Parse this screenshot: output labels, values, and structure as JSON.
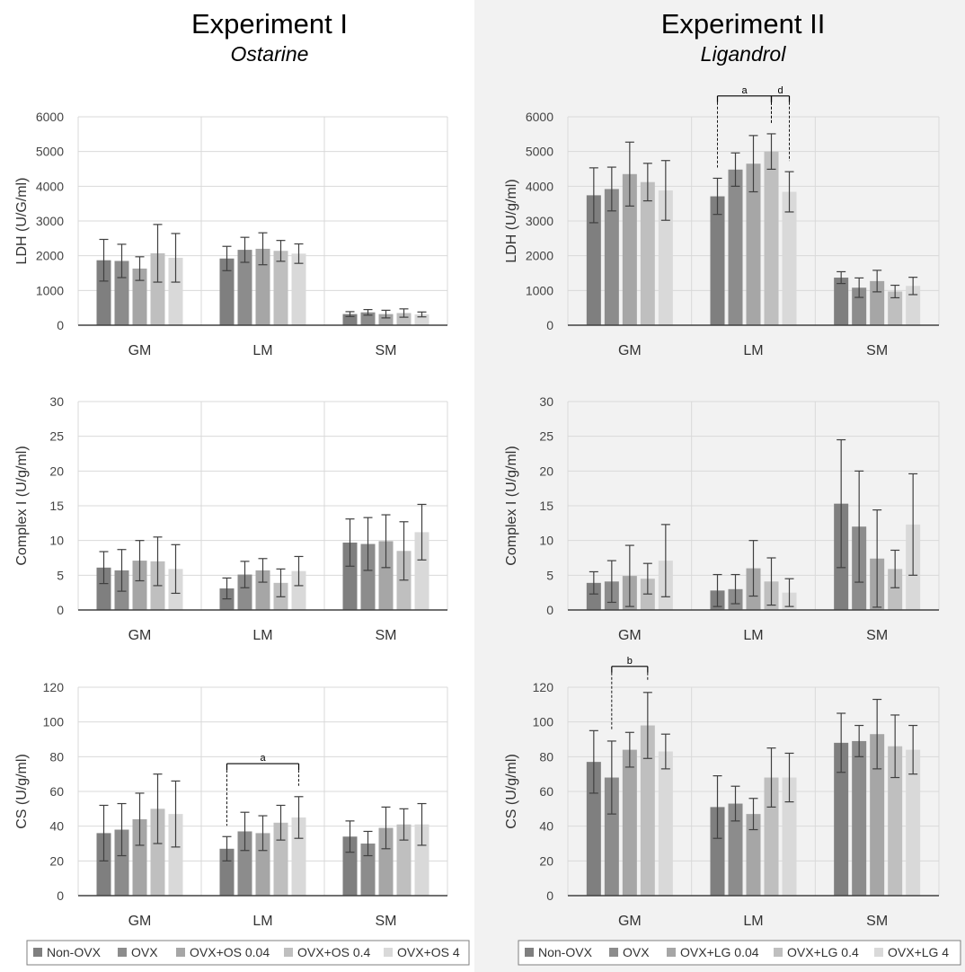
{
  "panels": [
    {
      "title": "Experiment I",
      "subtitle": "Ostarine"
    },
    {
      "title": "Experiment II",
      "subtitle": "Ligandrol"
    }
  ],
  "colors": {
    "series": [
      "#7f7f7f",
      "#8c8c8c",
      "#a6a6a6",
      "#bfbfbf",
      "#d9d9d9"
    ],
    "error": "#404040",
    "grid": "#d9d9d9",
    "axis": "#404040"
  },
  "chart_data": [
    {
      "type": "bar",
      "panel": 0,
      "ylabel": "LDH (U/G/ml)",
      "ylim": [
        0,
        6000
      ],
      "yticks": [
        0,
        1000,
        2000,
        3000,
        4000,
        5000,
        6000
      ],
      "categories": [
        "GM",
        "LM",
        "SM"
      ],
      "series": [
        {
          "name": "Non-OVX",
          "values": [
            1870,
            1920,
            320
          ],
          "errors": [
            600,
            350,
            70
          ]
        },
        {
          "name": "OVX",
          "values": [
            1850,
            2170,
            370
          ],
          "errors": [
            480,
            360,
            80
          ]
        },
        {
          "name": "OVX+OS 0.04",
          "values": [
            1630,
            2200,
            320
          ],
          "errors": [
            340,
            460,
            110
          ]
        },
        {
          "name": "OVX+OS 0.4",
          "values": [
            2070,
            2140,
            350
          ],
          "errors": [
            830,
            300,
            120
          ]
        },
        {
          "name": "OVX+OS 4",
          "values": [
            1940,
            2060,
            310
          ],
          "errors": [
            700,
            280,
            70
          ]
        }
      ],
      "annotations": []
    },
    {
      "type": "bar",
      "panel": 0,
      "ylabel": "Complex I (U/g/ml)",
      "ylim": [
        0,
        30
      ],
      "yticks": [
        0,
        5,
        10,
        15,
        20,
        25,
        30
      ],
      "categories": [
        "GM",
        "LM",
        "SM"
      ],
      "series": [
        {
          "name": "Non-OVX",
          "values": [
            6.1,
            3.1,
            9.7
          ],
          "errors": [
            2.3,
            1.5,
            3.4
          ]
        },
        {
          "name": "OVX",
          "values": [
            5.7,
            5.1,
            9.5
          ],
          "errors": [
            3.0,
            1.9,
            3.8
          ]
        },
        {
          "name": "OVX+OS 0.04",
          "values": [
            7.1,
            5.7,
            9.9
          ],
          "errors": [
            2.9,
            1.7,
            3.8
          ]
        },
        {
          "name": "OVX+OS 0.4",
          "values": [
            7.0,
            3.9,
            8.5
          ],
          "errors": [
            3.5,
            2.0,
            4.2
          ]
        },
        {
          "name": "OVX+OS 4",
          "values": [
            5.9,
            5.6,
            11.2
          ],
          "errors": [
            3.5,
            2.1,
            4.0
          ]
        }
      ],
      "annotations": []
    },
    {
      "type": "bar",
      "panel": 0,
      "ylabel": "CS (U/g/ml)",
      "ylim": [
        0,
        120
      ],
      "yticks": [
        0,
        20,
        40,
        60,
        80,
        100,
        120
      ],
      "categories": [
        "GM",
        "LM",
        "SM"
      ],
      "series": [
        {
          "name": "Non-OVX",
          "values": [
            36,
            27,
            34
          ],
          "errors": [
            16,
            7,
            9
          ]
        },
        {
          "name": "OVX",
          "values": [
            38,
            37,
            30
          ],
          "errors": [
            15,
            11,
            7
          ]
        },
        {
          "name": "OVX+OS 0.04",
          "values": [
            44,
            36,
            39
          ],
          "errors": [
            15,
            10,
            12
          ]
        },
        {
          "name": "OVX+OS 0.4",
          "values": [
            50,
            42,
            41
          ],
          "errors": [
            20,
            10,
            9
          ]
        },
        {
          "name": "OVX+OS 4",
          "values": [
            47,
            45,
            41
          ],
          "errors": [
            19,
            12,
            12
          ]
        }
      ],
      "annotations": [
        {
          "label": "a",
          "category": 1,
          "from_series": 0,
          "to_series": 4,
          "level": 76
        }
      ]
    },
    {
      "type": "bar",
      "panel": 1,
      "ylabel": "LDH (U/g/ml)",
      "ylim": [
        0,
        6000
      ],
      "yticks": [
        0,
        1000,
        2000,
        3000,
        4000,
        5000,
        6000
      ],
      "categories": [
        "GM",
        "LM",
        "SM"
      ],
      "series": [
        {
          "name": "Non-OVX",
          "values": [
            3740,
            3710,
            1370
          ],
          "errors": [
            790,
            520,
            170
          ]
        },
        {
          "name": "OVX",
          "values": [
            3920,
            4480,
            1080
          ],
          "errors": [
            630,
            480,
            280
          ]
        },
        {
          "name": "OVX+LG 0.04",
          "values": [
            4350,
            4650,
            1270
          ],
          "errors": [
            920,
            810,
            310
          ]
        },
        {
          "name": "OVX+LG 0.4",
          "values": [
            4120,
            5000,
            970
          ],
          "errors": [
            540,
            510,
            180
          ]
        },
        {
          "name": "OVX+LG 4",
          "values": [
            3880,
            3840,
            1130
          ],
          "errors": [
            860,
            580,
            250
          ]
        }
      ],
      "annotations": [
        {
          "label": "a",
          "category": 1,
          "from_series": 0,
          "to_series": 3,
          "level": 6600
        },
        {
          "label": "d",
          "category": 1,
          "from_series": 3,
          "to_series": 4,
          "level": 6600
        }
      ]
    },
    {
      "type": "bar",
      "panel": 1,
      "ylabel": "Complex I (U/g/ml)",
      "ylim": [
        0,
        30
      ],
      "yticks": [
        0,
        5,
        10,
        15,
        20,
        25,
        30
      ],
      "categories": [
        "GM",
        "LM",
        "SM"
      ],
      "series": [
        {
          "name": "Non-OVX",
          "values": [
            3.9,
            2.8,
            15.3
          ],
          "errors": [
            1.6,
            2.3,
            9.2
          ]
        },
        {
          "name": "OVX",
          "values": [
            4.1,
            3.0,
            12.0
          ],
          "errors": [
            3.0,
            2.1,
            8.0
          ]
        },
        {
          "name": "OVX+LG 0.04",
          "values": [
            4.9,
            6.0,
            7.4
          ],
          "errors": [
            4.4,
            4.0,
            7.0
          ]
        },
        {
          "name": "OVX+LG 0.4",
          "values": [
            4.5,
            4.1,
            5.9
          ],
          "errors": [
            2.2,
            3.4,
            2.7
          ]
        },
        {
          "name": "OVX+LG 4",
          "values": [
            7.1,
            2.5,
            12.3
          ],
          "errors": [
            5.2,
            2.0,
            7.3
          ]
        }
      ],
      "annotations": []
    },
    {
      "type": "bar",
      "panel": 1,
      "ylabel": "CS (U/g/ml)",
      "ylim": [
        0,
        120
      ],
      "yticks": [
        0,
        20,
        40,
        60,
        80,
        100,
        120
      ],
      "categories": [
        "GM",
        "LM",
        "SM"
      ],
      "series": [
        {
          "name": "Non-OVX",
          "values": [
            77,
            51,
            88
          ],
          "errors": [
            18,
            18,
            17
          ]
        },
        {
          "name": "OVX",
          "values": [
            68,
            53,
            89
          ],
          "errors": [
            21,
            10,
            9
          ]
        },
        {
          "name": "OVX+LG 0.04",
          "values": [
            84,
            47,
            93
          ],
          "errors": [
            10,
            9,
            20
          ]
        },
        {
          "name": "OVX+LG 0.4",
          "values": [
            98,
            68,
            86
          ],
          "errors": [
            19,
            17,
            18
          ]
        },
        {
          "name": "OVX+LG 4",
          "values": [
            83,
            68,
            84
          ],
          "errors": [
            10,
            14,
            14
          ]
        }
      ],
      "annotations": [
        {
          "label": "b",
          "category": 0,
          "from_series": 1,
          "to_series": 3,
          "level": 132
        }
      ]
    }
  ],
  "legends": [
    [
      "Non-OVX",
      "OVX",
      "OVX+OS 0.04",
      "OVX+OS 0.4",
      "OVX+OS 4"
    ],
    [
      "Non-OVX",
      "OVX",
      "OVX+LG 0.04",
      "OVX+LG 0.4",
      "OVX+LG 4"
    ]
  ]
}
